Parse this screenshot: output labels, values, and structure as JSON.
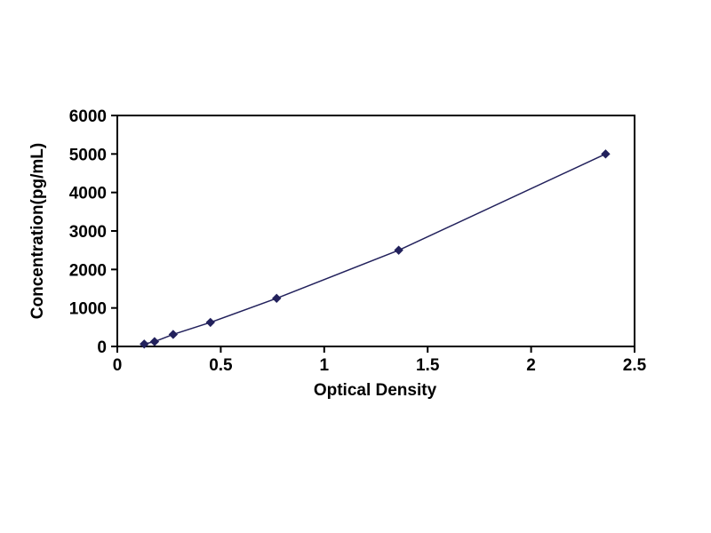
{
  "chart_data": {
    "type": "line",
    "title": "",
    "xlabel": "Optical Density",
    "ylabel": "Concentration(pg/mL)",
    "x": [
      0.13,
      0.18,
      0.27,
      0.45,
      0.77,
      1.36,
      2.36
    ],
    "y": [
      62.5,
      125,
      312.5,
      625,
      1250,
      2500,
      5000
    ],
    "xlim": [
      0,
      2.5
    ],
    "ylim": [
      0,
      6000
    ],
    "x_ticks": [
      0,
      0.5,
      1,
      1.5,
      2,
      2.5
    ],
    "x_tick_labels": [
      "0",
      "0.5",
      "1",
      "1.5",
      "2",
      "2.5"
    ],
    "y_ticks": [
      0,
      1000,
      2000,
      3000,
      4000,
      5000,
      6000
    ],
    "y_tick_labels": [
      "0",
      "1000",
      "2000",
      "3000",
      "4000",
      "5000",
      "6000"
    ],
    "grid": false,
    "legend": null,
    "line_color": "#22215c",
    "marker": "diamond",
    "marker_color": "#22215c",
    "frame_color": "#000000",
    "background_color": "#ffffff"
  }
}
